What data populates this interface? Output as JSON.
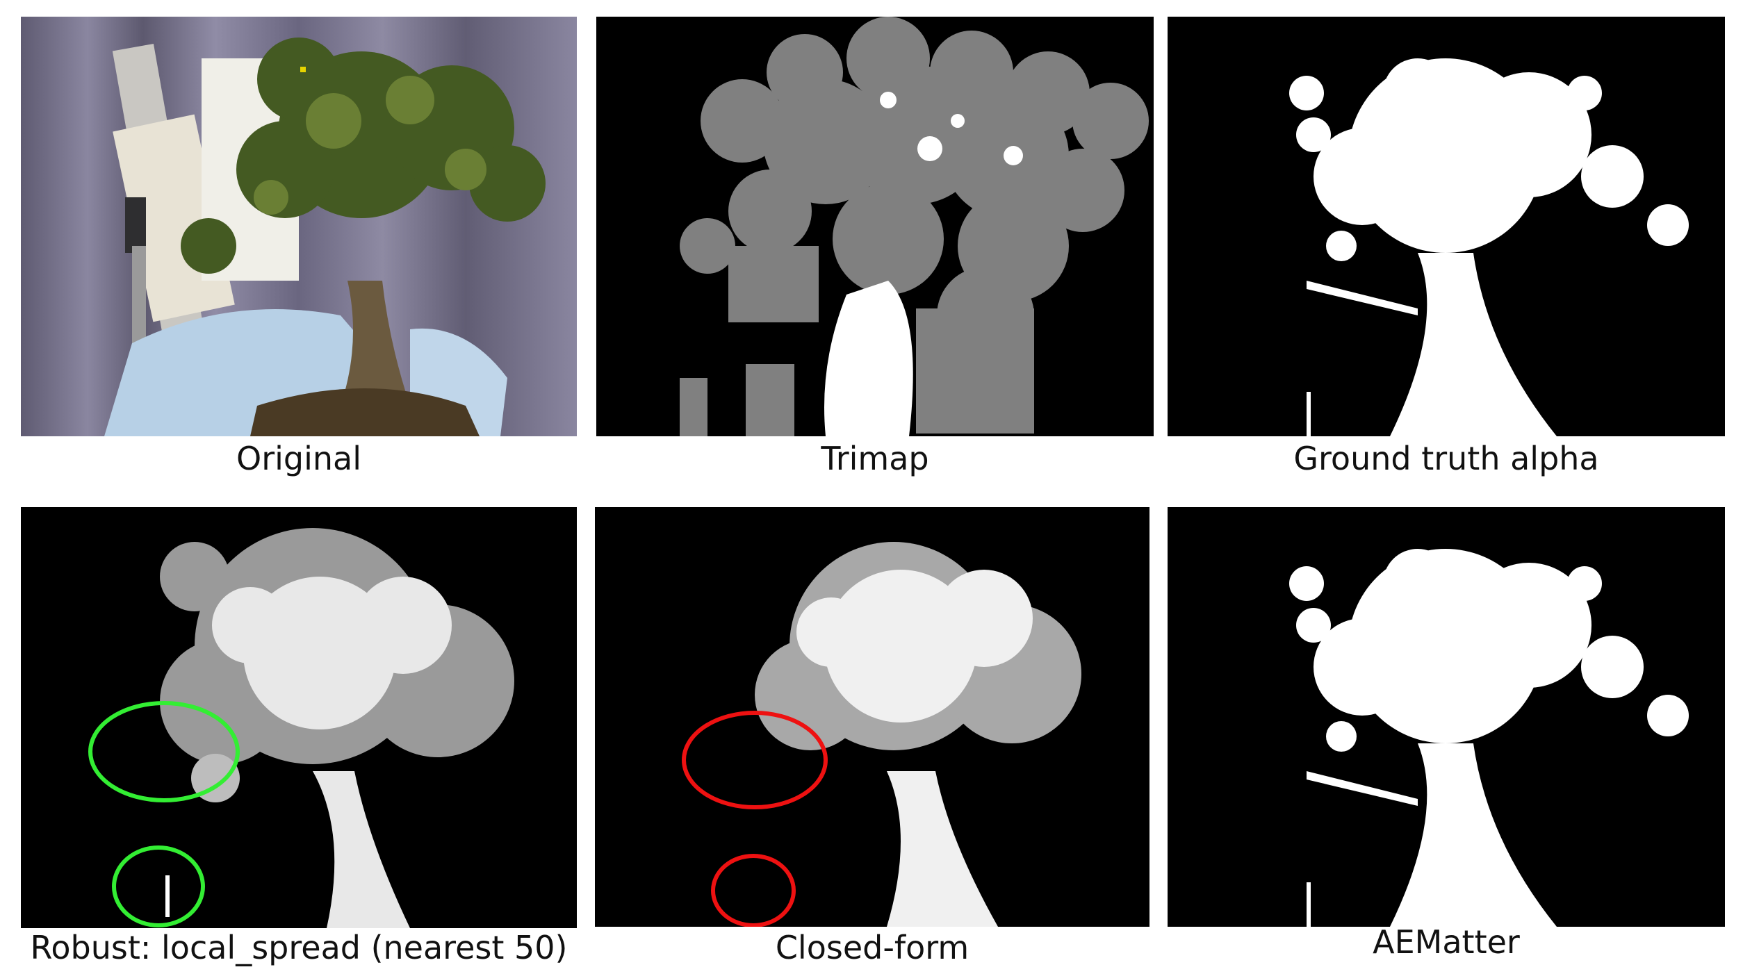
{
  "panels": [
    {
      "id": "original",
      "caption": "Original"
    },
    {
      "id": "trimap",
      "caption": "Trimap"
    },
    {
      "id": "ground-truth",
      "caption": "Ground truth alpha"
    },
    {
      "id": "robust",
      "caption": "Robust: local_spread (nearest 50)"
    },
    {
      "id": "closed-form",
      "caption": "Closed-form"
    },
    {
      "id": "aematter",
      "caption": "AEMatter"
    }
  ],
  "annotation_colors": {
    "robust_circles": "#33ee33",
    "closed_form_circles": "#ee1111"
  }
}
